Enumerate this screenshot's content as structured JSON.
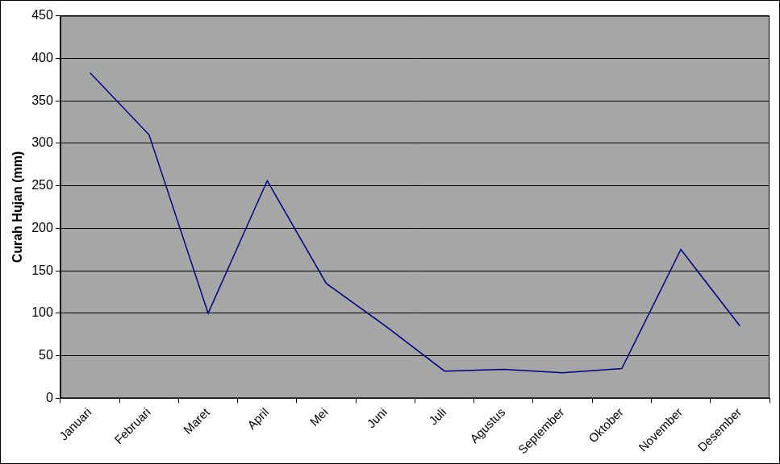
{
  "chart_data": {
    "type": "line",
    "y_label": "Curah Hujan (mm)",
    "categories": [
      "Januari",
      "Februari",
      "Maret",
      "April",
      "Mei",
      "Juni",
      "Juli",
      "Agustus",
      "September",
      "Oktober",
      "November",
      "Desember"
    ],
    "values": [
      383,
      310,
      100,
      256,
      135,
      85,
      32,
      34,
      30,
      35,
      175,
      85
    ],
    "color": "#000080",
    "ylim": [
      0,
      450
    ],
    "yticks": [
      0,
      50,
      100,
      150,
      200,
      250,
      300,
      350,
      400,
      450
    ],
    "grid": true
  }
}
